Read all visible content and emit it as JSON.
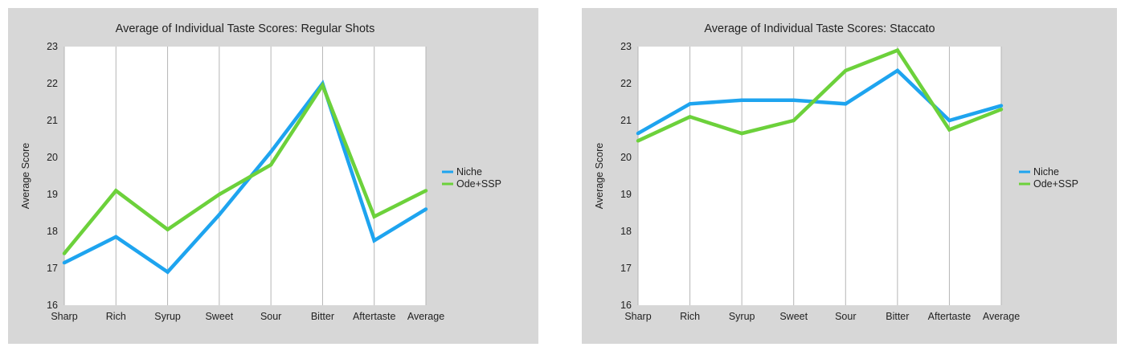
{
  "colors": {
    "Niche": "#1ea4ef",
    "Ode+SSP": "#6cd13b",
    "panel_bg": "#d7d7d7",
    "plot_bg": "#ffffff",
    "grid": "#b5b5b5"
  },
  "chart_data": [
    {
      "type": "line",
      "title": "Average of Individual Taste Scores: Regular Shots",
      "xlabel": "",
      "ylabel": "Average Score",
      "categories": [
        "Sharp",
        "Rich",
        "Syrup",
        "Sweet",
        "Sour",
        "Bitter",
        "Aftertaste",
        "Average"
      ],
      "ylim": [
        16,
        23
      ],
      "yticks": [
        16,
        17,
        18,
        19,
        20,
        21,
        22,
        23
      ],
      "grid": "vertical",
      "legend": "right",
      "series": [
        {
          "name": "Niche",
          "values": [
            17.15,
            17.85,
            16.9,
            18.45,
            20.15,
            22.0,
            17.75,
            18.6
          ]
        },
        {
          "name": "Ode+SSP",
          "values": [
            17.4,
            19.1,
            18.05,
            19.0,
            19.8,
            21.95,
            18.4,
            19.1
          ]
        }
      ]
    },
    {
      "type": "line",
      "title": "Average of Individual Taste Scores: Staccato",
      "xlabel": "",
      "ylabel": "Average Score",
      "categories": [
        "Sharp",
        "Rich",
        "Syrup",
        "Sweet",
        "Sour",
        "Bitter",
        "Aftertaste",
        "Average"
      ],
      "ylim": [
        16,
        23
      ],
      "yticks": [
        16,
        17,
        18,
        19,
        20,
        21,
        22,
        23
      ],
      "grid": "vertical",
      "legend": "right",
      "series": [
        {
          "name": "Niche",
          "values": [
            20.65,
            21.45,
            21.55,
            21.55,
            21.45,
            22.35,
            21.0,
            21.4
          ]
        },
        {
          "name": "Ode+SSP",
          "values": [
            20.45,
            21.1,
            20.65,
            21.0,
            22.35,
            22.9,
            20.75,
            21.3
          ]
        }
      ]
    }
  ]
}
